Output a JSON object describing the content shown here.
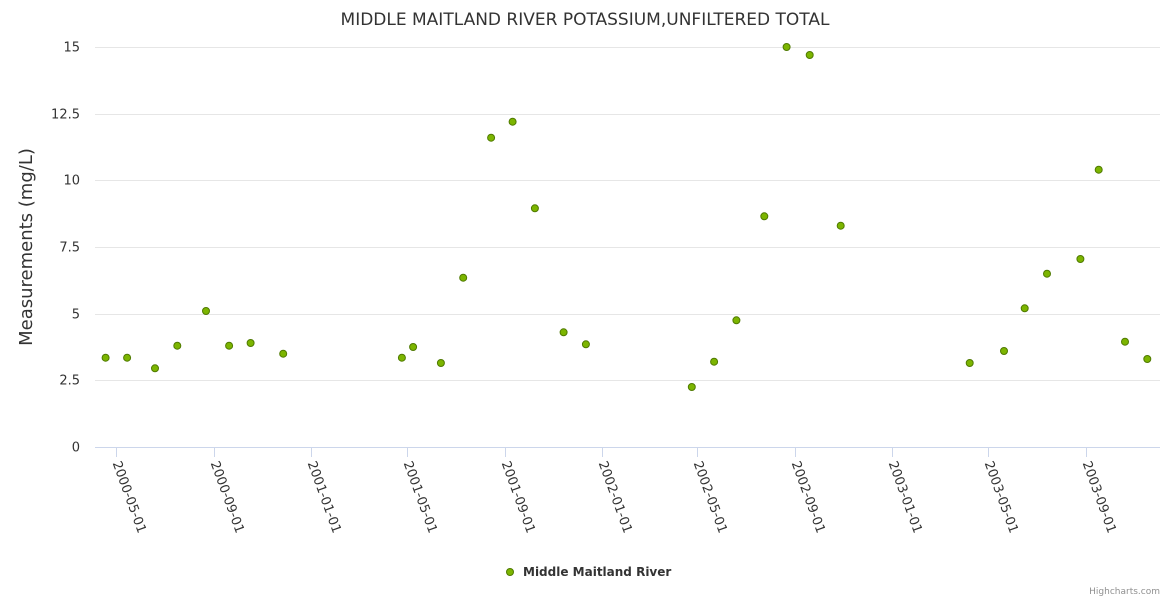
{
  "chart_data": {
    "type": "scatter",
    "title": "MIDDLE MAITLAND RIVER POTASSIUM,UNFILTERED TOTAL",
    "ylabel": "Measurements (mg/L)",
    "xlabel": "",
    "ylim": [
      0,
      15
    ],
    "yticks": [
      "0",
      "2.5",
      "5",
      "7.5",
      "10",
      "12.5",
      "15"
    ],
    "xticks": [
      "2000-05-01",
      "2000-09-01",
      "2001-01-01",
      "2001-05-01",
      "2001-09-01",
      "2002-01-01",
      "2002-05-01",
      "2002-09-01",
      "2003-01-01",
      "2003-05-01",
      "2003-09-01"
    ],
    "grid": true,
    "legend_position": "bottom-center",
    "marker_color": "#7cb500",
    "series": [
      {
        "name": "Middle Maitland River",
        "points": [
          {
            "x": "2000-04-18",
            "y": 3.35
          },
          {
            "x": "2000-05-15",
            "y": 3.35
          },
          {
            "x": "2000-06-19",
            "y": 2.95
          },
          {
            "x": "2000-07-17",
            "y": 3.8
          },
          {
            "x": "2000-08-22",
            "y": 5.1
          },
          {
            "x": "2000-09-20",
            "y": 3.8
          },
          {
            "x": "2000-10-17",
            "y": 3.9
          },
          {
            "x": "2000-11-27",
            "y": 3.5
          },
          {
            "x": "2001-04-25",
            "y": 3.35
          },
          {
            "x": "2001-05-09",
            "y": 3.75
          },
          {
            "x": "2001-06-13",
            "y": 3.15
          },
          {
            "x": "2001-07-11",
            "y": 6.35
          },
          {
            "x": "2001-08-15",
            "y": 11.6
          },
          {
            "x": "2001-09-11",
            "y": 12.2
          },
          {
            "x": "2001-10-09",
            "y": 8.95
          },
          {
            "x": "2001-11-14",
            "y": 4.3
          },
          {
            "x": "2001-12-12",
            "y": 3.85
          },
          {
            "x": "2002-04-24",
            "y": 2.25
          },
          {
            "x": "2002-05-22",
            "y": 3.2
          },
          {
            "x": "2002-06-19",
            "y": 4.75
          },
          {
            "x": "2002-07-24",
            "y": 8.65
          },
          {
            "x": "2002-08-21",
            "y": 15.0
          },
          {
            "x": "2002-09-19",
            "y": 14.7
          },
          {
            "x": "2002-10-28",
            "y": 8.3
          },
          {
            "x": "2003-04-08",
            "y": 3.15
          },
          {
            "x": "2003-05-21",
            "y": 3.6
          },
          {
            "x": "2003-06-16",
            "y": 5.2
          },
          {
            "x": "2003-07-14",
            "y": 6.5
          },
          {
            "x": "2003-08-25",
            "y": 7.05
          },
          {
            "x": "2003-09-17",
            "y": 10.4
          },
          {
            "x": "2003-10-20",
            "y": 3.95
          },
          {
            "x": "2003-11-17",
            "y": 3.3
          }
        ]
      }
    ]
  },
  "credits": "Highcharts.com"
}
